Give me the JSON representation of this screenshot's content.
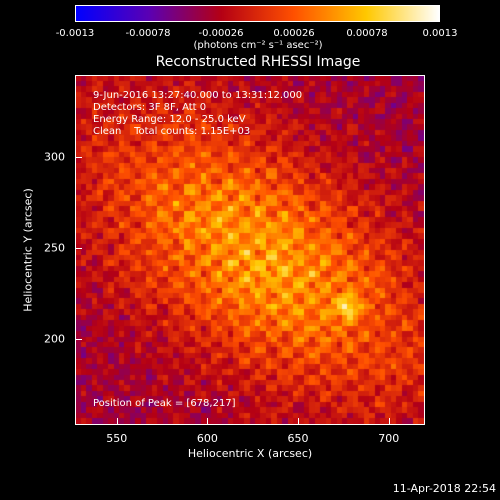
{
  "chart_data": {
    "type": "heatmap",
    "title": "Reconstructed RHESSI Image",
    "xlabel": "Heliocentric X (arcsec)",
    "ylabel": "Heliocentric Y (arcsec)",
    "xlim": [
      527,
      720
    ],
    "ylim": [
      153,
      345
    ],
    "xticks": [
      550,
      600,
      650,
      700
    ],
    "yticks": [
      200,
      250,
      300
    ],
    "colorbar": {
      "ticks": [
        "-0.0013",
        "-0.00078",
        "-0.00026",
        "0.00026",
        "0.00078",
        "0.0013"
      ],
      "range": [
        -0.0013,
        0.0013
      ],
      "unit": "(photons cm⁻² s⁻¹ asec⁻²)",
      "colormap": [
        "#0000ff",
        "#5a00b4",
        "#b40014",
        "#ff5000",
        "#ffc800",
        "#ffffff"
      ]
    },
    "annotations": [
      "9-Jun-2016 13:27:40.000 to 13:31:12.000",
      "Detectors: 3F 8F, Att 0",
      "Energy Range: 12.0 - 25.0 keV",
      "Clean    Total counts: 1.15E+03"
    ],
    "peak_label": "Position of Peak = [678,217]",
    "peak": [
      678,
      217
    ]
  },
  "timestamp": "11-Apr-2018 22:54"
}
